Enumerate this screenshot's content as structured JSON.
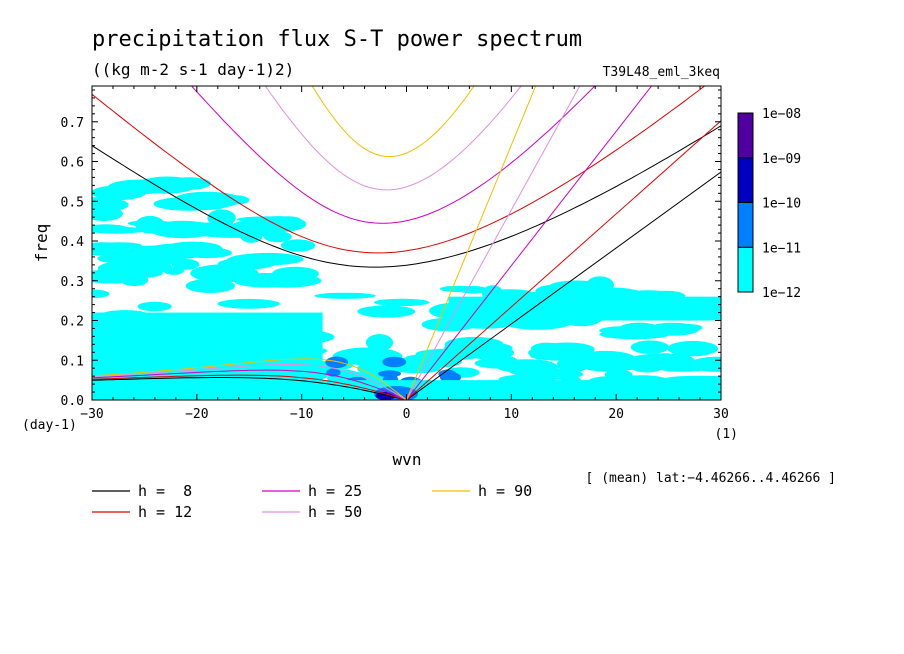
{
  "chart_data": {
    "type": "heatmap",
    "title": "precipitation flux S-T power spectrum",
    "subtitle": "((kg m-2 s-1 day-1)2)",
    "run_label": "T39L48_eml_3keq",
    "xlabel": "wvn",
    "ylabel": "freq",
    "x_unit": "(1)",
    "y_unit": "(day-1)",
    "xlim": [
      -30,
      30
    ],
    "ylim": [
      0,
      0.79
    ],
    "x_ticks": [
      -30,
      -20,
      -10,
      0,
      10,
      20,
      30
    ],
    "x_tick_labels": [
      "−30",
      "−20",
      "−10",
      "0",
      "10",
      "20",
      "30"
    ],
    "y_ticks": [
      0,
      0.1,
      0.2,
      0.3,
      0.4,
      0.5,
      0.6,
      0.7
    ],
    "y_tick_labels": [
      "0.0",
      "0.1",
      "0.2",
      "0.3",
      "0.4",
      "0.5",
      "0.6",
      "0.7"
    ],
    "footer_note": "[ (mean) lat:−4.46266..4.46266 ]",
    "colorbar": {
      "levels": [
        "1e−12",
        "1e−11",
        "1e−10",
        "1e−09",
        "1e−08"
      ],
      "colors": [
        "#00ffff",
        "#0080ff",
        "#0000c0",
        "#5000a0"
      ]
    },
    "dispersion_curves": [
      {
        "label": "h =  8",
        "h": 8,
        "color": "#000000"
      },
      {
        "label": "h = 12",
        "h": 12,
        "color": "#e00000"
      },
      {
        "label": "h = 25",
        "h": 25,
        "color": "#d000c0"
      },
      {
        "label": "h = 50",
        "h": 50,
        "color": "#e090e0"
      },
      {
        "label": "h = 90",
        "h": 90,
        "color": "#f0c000"
      }
    ],
    "spectrum_regions": [
      {
        "level": 1,
        "x_range": [
          -30,
          30
        ],
        "y_range": [
          0.0,
          0.3
        ],
        "description": "cyan background power"
      },
      {
        "level": 1,
        "x_range": [
          -30,
          -10
        ],
        "y_range": [
          0.3,
          0.55
        ],
        "description": "patchy cyan"
      },
      {
        "level": 2,
        "x_range": [
          -15,
          5
        ],
        "y_range": [
          0.0,
          0.1
        ],
        "description": "blue patches"
      },
      {
        "level": 3,
        "x_range": [
          -4,
          3
        ],
        "y_range": [
          0.0,
          0.04
        ],
        "description": "dark blue core"
      }
    ]
  }
}
